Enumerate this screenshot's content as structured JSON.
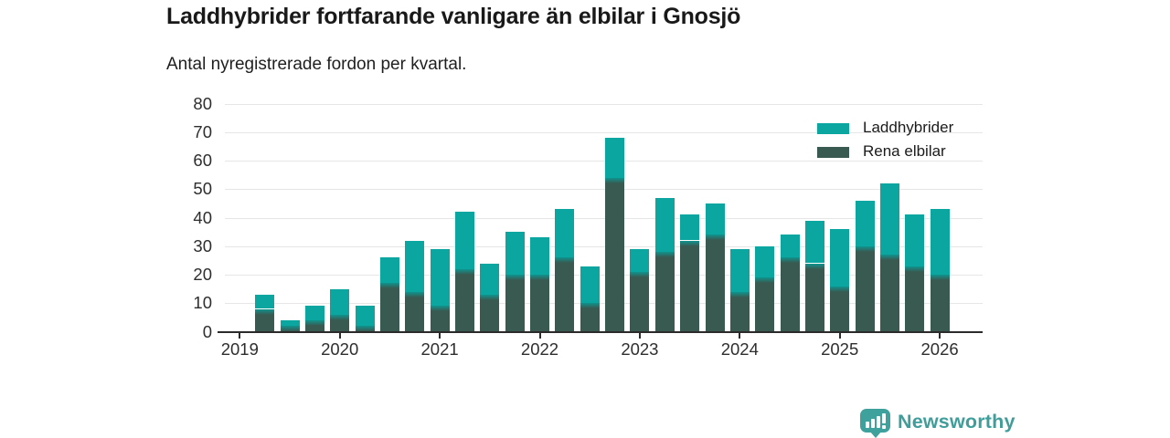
{
  "chart_data": {
    "type": "bar",
    "stacked": true,
    "title": "Laddhybrider fortfarande vanligare än elbilar i Gnosjö",
    "subtitle": "Antal nyregistrerade fordon per kvartal.",
    "xlabel": "",
    "ylabel": "",
    "ylim": [
      0,
      80
    ],
    "y_ticks": [
      0,
      10,
      20,
      30,
      40,
      50,
      60,
      70,
      80
    ],
    "x_tick_labels": [
      "2019",
      "2020",
      "2021",
      "2022",
      "2023",
      "2024",
      "2025",
      "2026"
    ],
    "grid": "horizontal",
    "legend_position": "top-right",
    "categories": [
      "2019 Q2",
      "2019 Q3",
      "2019 Q4",
      "2020 Q1",
      "2020 Q2",
      "2020 Q3",
      "2020 Q4",
      "2021 Q1",
      "2021 Q2",
      "2021 Q3",
      "2021 Q4",
      "2022 Q1",
      "2022 Q2",
      "2022 Q3",
      "2022 Q4",
      "2023 Q1",
      "2023 Q2",
      "2023 Q3",
      "2023 Q4",
      "2024 Q1",
      "2024 Q2",
      "2024 Q3",
      "2024 Q4",
      "2025 Q1",
      "2025 Q2",
      "2025 Q3",
      "2025 Q4",
      "2026 Q1"
    ],
    "series": [
      {
        "name": "Laddhybrider",
        "color": "#0ba6a0",
        "values": [
          5,
          2,
          5,
          9,
          7,
          9,
          18,
          20,
          20,
          11,
          15,
          13,
          17,
          13,
          14,
          8,
          19,
          9,
          11,
          15,
          11,
          8,
          15,
          20,
          16,
          25,
          18,
          23
        ]
      },
      {
        "name": "Rena elbilar",
        "color": "#385a50",
        "values": [
          8,
          2,
          4,
          6,
          2,
          17,
          14,
          9,
          22,
          13,
          20,
          20,
          26,
          10,
          54,
          21,
          28,
          32,
          34,
          14,
          19,
          26,
          24,
          16,
          30,
          27,
          23,
          20
        ]
      }
    ],
    "stack_totals": [
      13,
      4,
      9,
      15,
      9,
      26,
      32,
      29,
      42,
      24,
      35,
      33,
      43,
      23,
      68,
      29,
      47,
      41,
      45,
      29,
      30,
      34,
      39,
      36,
      46,
      52,
      41,
      43
    ]
  },
  "colors": {
    "grid": "#e6e6e6",
    "axis": "#2b2b2b",
    "junction_blend": "#0f948e",
    "brand": "#3f9d9a"
  },
  "footer": {
    "brand": "Newsworthy",
    "icon": "newsworthy-bars-bubble-icon"
  }
}
